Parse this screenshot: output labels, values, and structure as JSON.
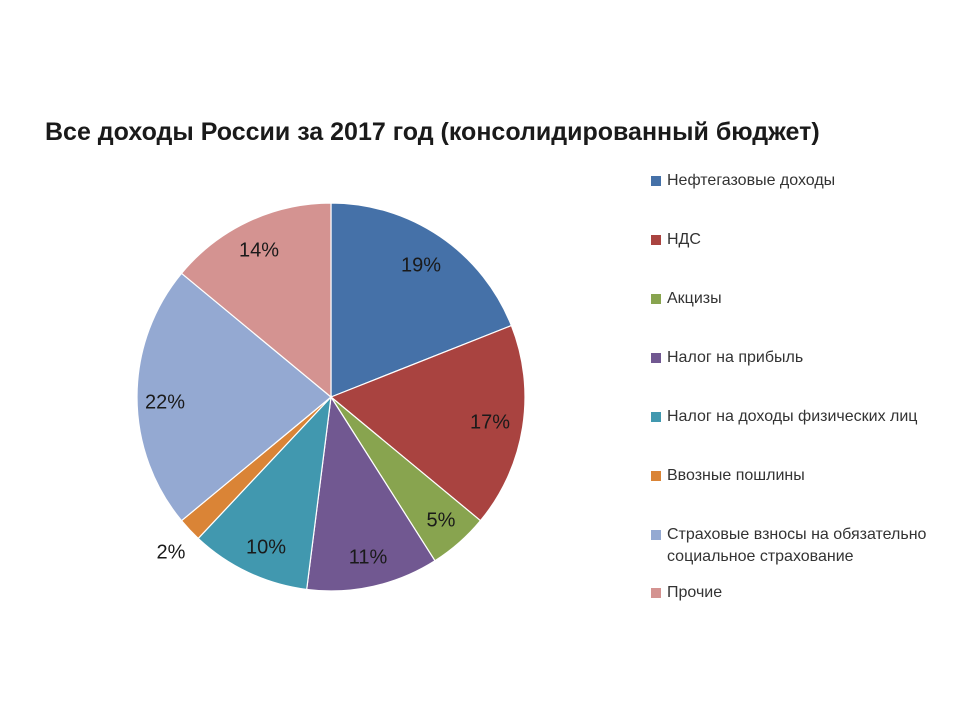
{
  "chart_data": {
    "type": "pie",
    "title": "Все доходы России за 2017 год (консолидированный бюджет)",
    "start_angle": "12 o'clock",
    "direction": "clockwise",
    "legend_position": "right",
    "slices": [
      {
        "label": "Нефтегазовые доходы",
        "value": 19,
        "display": "19%",
        "color": "#4571A8"
      },
      {
        "label": "НДС",
        "value": 17,
        "display": "17%",
        "color": "#A94340"
      },
      {
        "label": "Акцизы",
        "value": 5,
        "display": "5%",
        "color": "#88A44F"
      },
      {
        "label": "Налог на прибыль",
        "value": 11,
        "display": "11%",
        "color": "#715891"
      },
      {
        "label": "Налог на доходы физических лиц",
        "value": 10,
        "display": "10%",
        "color": "#4198AF"
      },
      {
        "label": "Ввозные пошлины",
        "value": 2,
        "display": "2%",
        "color": "#DA8436"
      },
      {
        "label": "Страховые взносы на обязательно\nсоциальное страхование",
        "value": 22,
        "display": "22%",
        "color": "#94A9D2"
      },
      {
        "label": "Прочие",
        "value": 14,
        "display": "14%",
        "color": "#D49391"
      }
    ]
  }
}
